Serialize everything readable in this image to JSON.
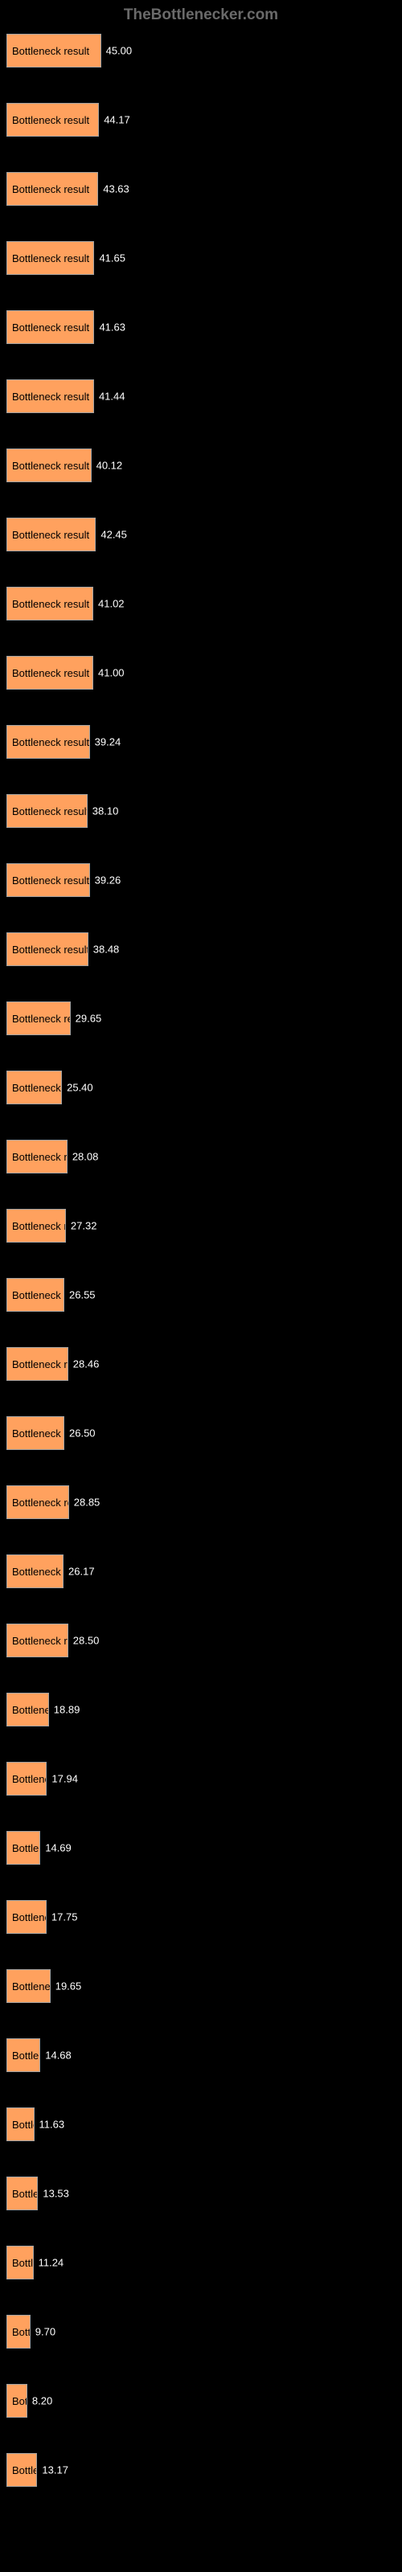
{
  "header": {
    "title": "TheBottlenecker.com"
  },
  "chart": {
    "bar_color": "#ffa15e",
    "border_color": "#a0a0a0",
    "background_color": "#000000",
    "text_color_inside": "#000000",
    "text_color_outside": "#ffffff",
    "max_width": 480,
    "max_value": 45,
    "bar_label": "Bottleneck result",
    "bars": [
      {
        "label": "",
        "width_pct": 24.5,
        "value": "45.00"
      },
      {
        "label": "",
        "width_pct": 24.0,
        "value": "44.17"
      },
      {
        "label": "",
        "width_pct": 23.8,
        "value": "43.63"
      },
      {
        "label": "",
        "width_pct": 22.8,
        "value": "41.65"
      },
      {
        "label": "",
        "width_pct": 22.8,
        "value": "41.63"
      },
      {
        "label": "",
        "width_pct": 22.7,
        "value": "41.44"
      },
      {
        "label": "",
        "width_pct": 22.0,
        "value": "40.12"
      },
      {
        "label": "",
        "width_pct": 23.2,
        "value": "42.45"
      },
      {
        "label": "",
        "width_pct": 22.5,
        "value": "41.02"
      },
      {
        "label": "",
        "width_pct": 22.5,
        "value": "41.00"
      },
      {
        "label": "",
        "width_pct": 21.6,
        "value": "39.24"
      },
      {
        "label": "",
        "width_pct": 21.0,
        "value": "38.10"
      },
      {
        "label": "",
        "width_pct": 21.6,
        "value": "39.26"
      },
      {
        "label": "",
        "width_pct": 21.2,
        "value": "38.48"
      },
      {
        "label": "",
        "width_pct": 16.6,
        "value": "29.65"
      },
      {
        "label": "",
        "width_pct": 14.4,
        "value": "25.40"
      },
      {
        "label": "",
        "width_pct": 15.8,
        "value": "28.08"
      },
      {
        "label": "",
        "width_pct": 15.4,
        "value": "27.32"
      },
      {
        "label": "",
        "width_pct": 15.0,
        "value": "26.55"
      },
      {
        "label": "",
        "width_pct": 16.0,
        "value": "28.46"
      },
      {
        "label": "",
        "width_pct": 15.0,
        "value": "26.50"
      },
      {
        "label": "",
        "width_pct": 16.2,
        "value": "28.85"
      },
      {
        "label": "",
        "width_pct": 14.8,
        "value": "26.17"
      },
      {
        "label": "",
        "width_pct": 16.0,
        "value": "28.50"
      },
      {
        "label": "",
        "width_pct": 11.0,
        "value": "18.89"
      },
      {
        "label": "",
        "width_pct": 10.5,
        "value": "17.94"
      },
      {
        "label": "",
        "width_pct": 8.8,
        "value": "14.69"
      },
      {
        "label": "",
        "width_pct": 10.4,
        "value": "17.75"
      },
      {
        "label": "",
        "width_pct": 11.4,
        "value": "19.65"
      },
      {
        "label": "",
        "width_pct": 8.8,
        "value": "14.68"
      },
      {
        "label": "",
        "width_pct": 7.2,
        "value": "11.63"
      },
      {
        "label": "",
        "width_pct": 8.2,
        "value": "13.53"
      },
      {
        "label": "",
        "width_pct": 7.0,
        "value": "11.24"
      },
      {
        "label": "",
        "width_pct": 6.2,
        "value": "9.70"
      },
      {
        "label": "",
        "width_pct": 5.4,
        "value": "8.20"
      },
      {
        "label": "",
        "width_pct": 8.0,
        "value": "13.17"
      }
    ]
  }
}
